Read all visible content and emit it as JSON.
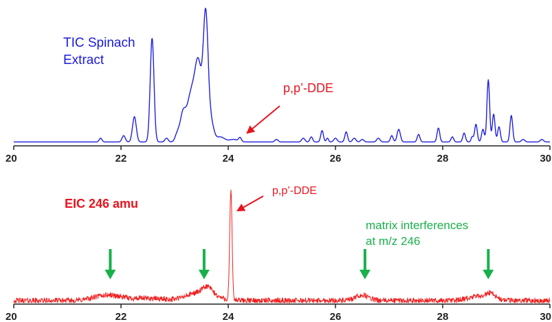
{
  "colors": {
    "tic": "#1f1fdc",
    "eic": "#f01e1e",
    "annotation_red": "#e8141e",
    "annotation_green": "#19b04b",
    "axis": "#222222"
  },
  "chart_data": [
    {
      "type": "line",
      "xlim": [
        20,
        30
      ],
      "xticks": [
        "20",
        "22",
        "24",
        "26",
        "28",
        "30"
      ],
      "grid": false,
      "annotations": {
        "title_line1": "TIC Spinach",
        "title_line2": "Extract",
        "arrow_label": "p,p’-DDE"
      },
      "series": [
        {
          "name": "TIC Spinach Extract",
          "baseline": 2,
          "peaks": [
            [
              21.62,
              3,
              0.025
            ],
            [
              22.05,
              5,
              0.03
            ],
            [
              22.25,
              20,
              0.035
            ],
            [
              22.58,
              82,
              0.035
            ],
            [
              22.85,
              3,
              0.03
            ],
            [
              23.05,
              6,
              0.04
            ],
            [
              23.15,
              18,
              0.05
            ],
            [
              23.32,
              40,
              0.09
            ],
            [
              23.45,
              50,
              0.06
            ],
            [
              23.58,
              98,
              0.045
            ],
            [
              23.68,
              15,
              0.05
            ],
            [
              23.85,
              4,
              0.08
            ],
            [
              24.1,
              2,
              0.08
            ],
            [
              24.22,
              3,
              0.025
            ],
            [
              24.9,
              2,
              0.03
            ],
            [
              25.4,
              3,
              0.03
            ],
            [
              25.55,
              4,
              0.025
            ],
            [
              25.75,
              9,
              0.025
            ],
            [
              25.85,
              3,
              0.02
            ],
            [
              26.0,
              3,
              0.03
            ],
            [
              26.2,
              8,
              0.025
            ],
            [
              26.35,
              3,
              0.03
            ],
            [
              26.5,
              2,
              0.03
            ],
            [
              26.8,
              3,
              0.03
            ],
            [
              27.05,
              5,
              0.025
            ],
            [
              27.18,
              10,
              0.03
            ],
            [
              27.55,
              6,
              0.025
            ],
            [
              27.92,
              11,
              0.025
            ],
            [
              28.18,
              4,
              0.025
            ],
            [
              28.4,
              7,
              0.025
            ],
            [
              28.55,
              4,
              0.02
            ],
            [
              28.62,
              14,
              0.025
            ],
            [
              28.75,
              10,
              0.025
            ],
            [
              28.85,
              49,
              0.025
            ],
            [
              28.95,
              22,
              0.025
            ],
            [
              29.05,
              12,
              0.025
            ],
            [
              29.28,
              21,
              0.025
            ],
            [
              29.5,
              2,
              0.03
            ],
            [
              29.85,
              2,
              0.03
            ]
          ]
        }
      ]
    },
    {
      "type": "line",
      "xlim": [
        20,
        30
      ],
      "xticks": [
        "20",
        "22",
        "24",
        "26",
        "28",
        "30"
      ],
      "grid": false,
      "annotations": {
        "title": "EIC 246 amu",
        "peak_label": "p,p’-DDE",
        "interference_line1": "matrix interferences",
        "interference_line2": "at m/z 246",
        "interference_arrows_x": [
          21.8,
          23.55,
          26.55,
          28.85
        ]
      },
      "series": [
        {
          "name": "EIC 246 amu",
          "baseline": 2,
          "noise": 2.5,
          "peaks": [
            [
              21.75,
              5,
              0.25
            ],
            [
              22.5,
              2,
              0.3
            ],
            [
              23.5,
              8,
              0.25
            ],
            [
              23.62,
              6,
              0.08
            ],
            [
              24.05,
              100,
              0.022
            ],
            [
              26.5,
              5,
              0.12
            ],
            [
              28.7,
              4,
              0.2
            ],
            [
              28.9,
              5,
              0.08
            ]
          ]
        }
      ]
    }
  ]
}
